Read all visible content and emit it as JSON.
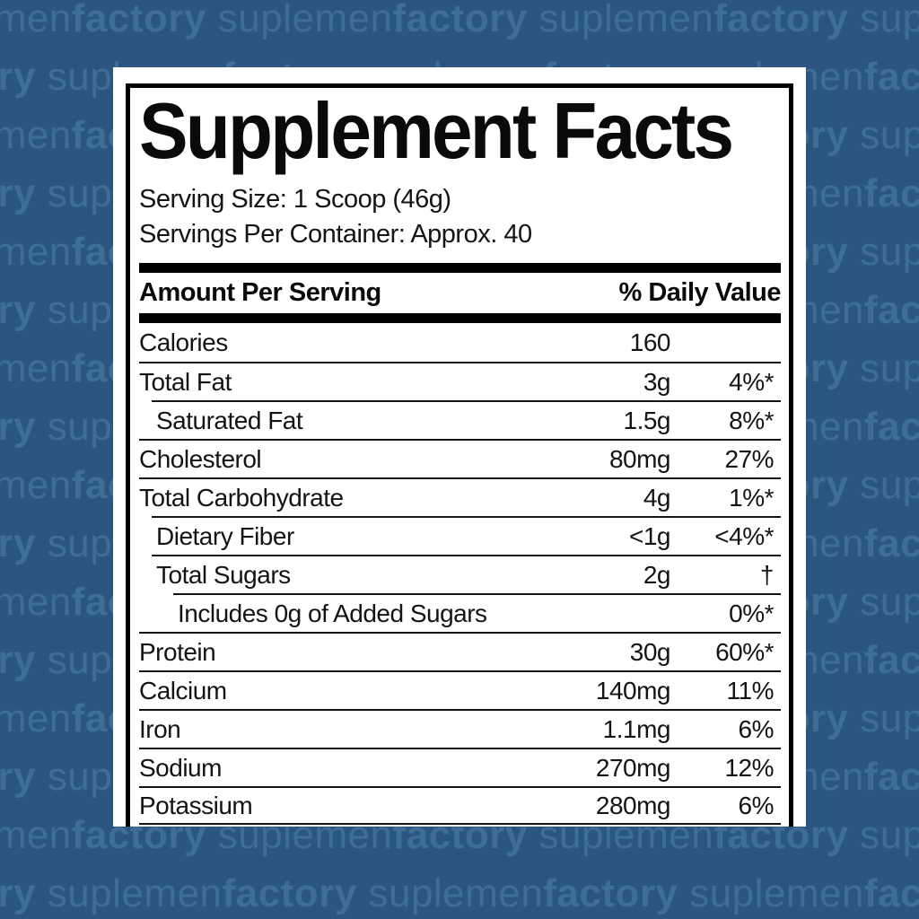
{
  "background": {
    "color": "#2b5681",
    "watermark": {
      "regular": "suplemen",
      "bold": "factory",
      "color": "#3e6d98"
    }
  },
  "label": {
    "title": "Supplement Facts",
    "serving_size": "Serving Size: 1 Scoop (46g)",
    "servings_per_container": "Servings Per Container: Approx. 40",
    "header": {
      "amount": "Amount Per Serving",
      "daily_value": "% Daily Value"
    },
    "rows": [
      {
        "name": "Calories",
        "amount": "160",
        "dv": "",
        "indent": 0
      },
      {
        "name": "Total Fat",
        "amount": "3g",
        "dv": "4%*",
        "indent": 0
      },
      {
        "name": "Saturated Fat",
        "amount": "1.5g",
        "dv": "8%*",
        "indent": 1
      },
      {
        "name": "Cholesterol",
        "amount": "80mg",
        "dv": "27%",
        "indent": 0
      },
      {
        "name": "Total Carbohydrate",
        "amount": "4g",
        "dv": "1%*",
        "indent": 0
      },
      {
        "name": "Dietary Fiber",
        "amount": "<1g",
        "dv": "<4%*",
        "indent": 1
      },
      {
        "name": "Total Sugars",
        "amount": "2g",
        "dv": "†",
        "indent": 1
      },
      {
        "name": "Includes 0g of Added Sugars",
        "amount": "",
        "dv": "0%*",
        "indent": 2
      },
      {
        "name": "Protein",
        "amount": "30g",
        "dv": "60%*",
        "indent": 0
      },
      {
        "name": "Calcium",
        "amount": "140mg",
        "dv": "11%",
        "indent": 0
      },
      {
        "name": "Iron",
        "amount": "1.1mg",
        "dv": "6%",
        "indent": 0
      },
      {
        "name": "Sodium",
        "amount": "270mg",
        "dv": "12%",
        "indent": 0
      },
      {
        "name": "Potassium",
        "amount": "280mg",
        "dv": "6%",
        "indent": 0
      }
    ]
  }
}
